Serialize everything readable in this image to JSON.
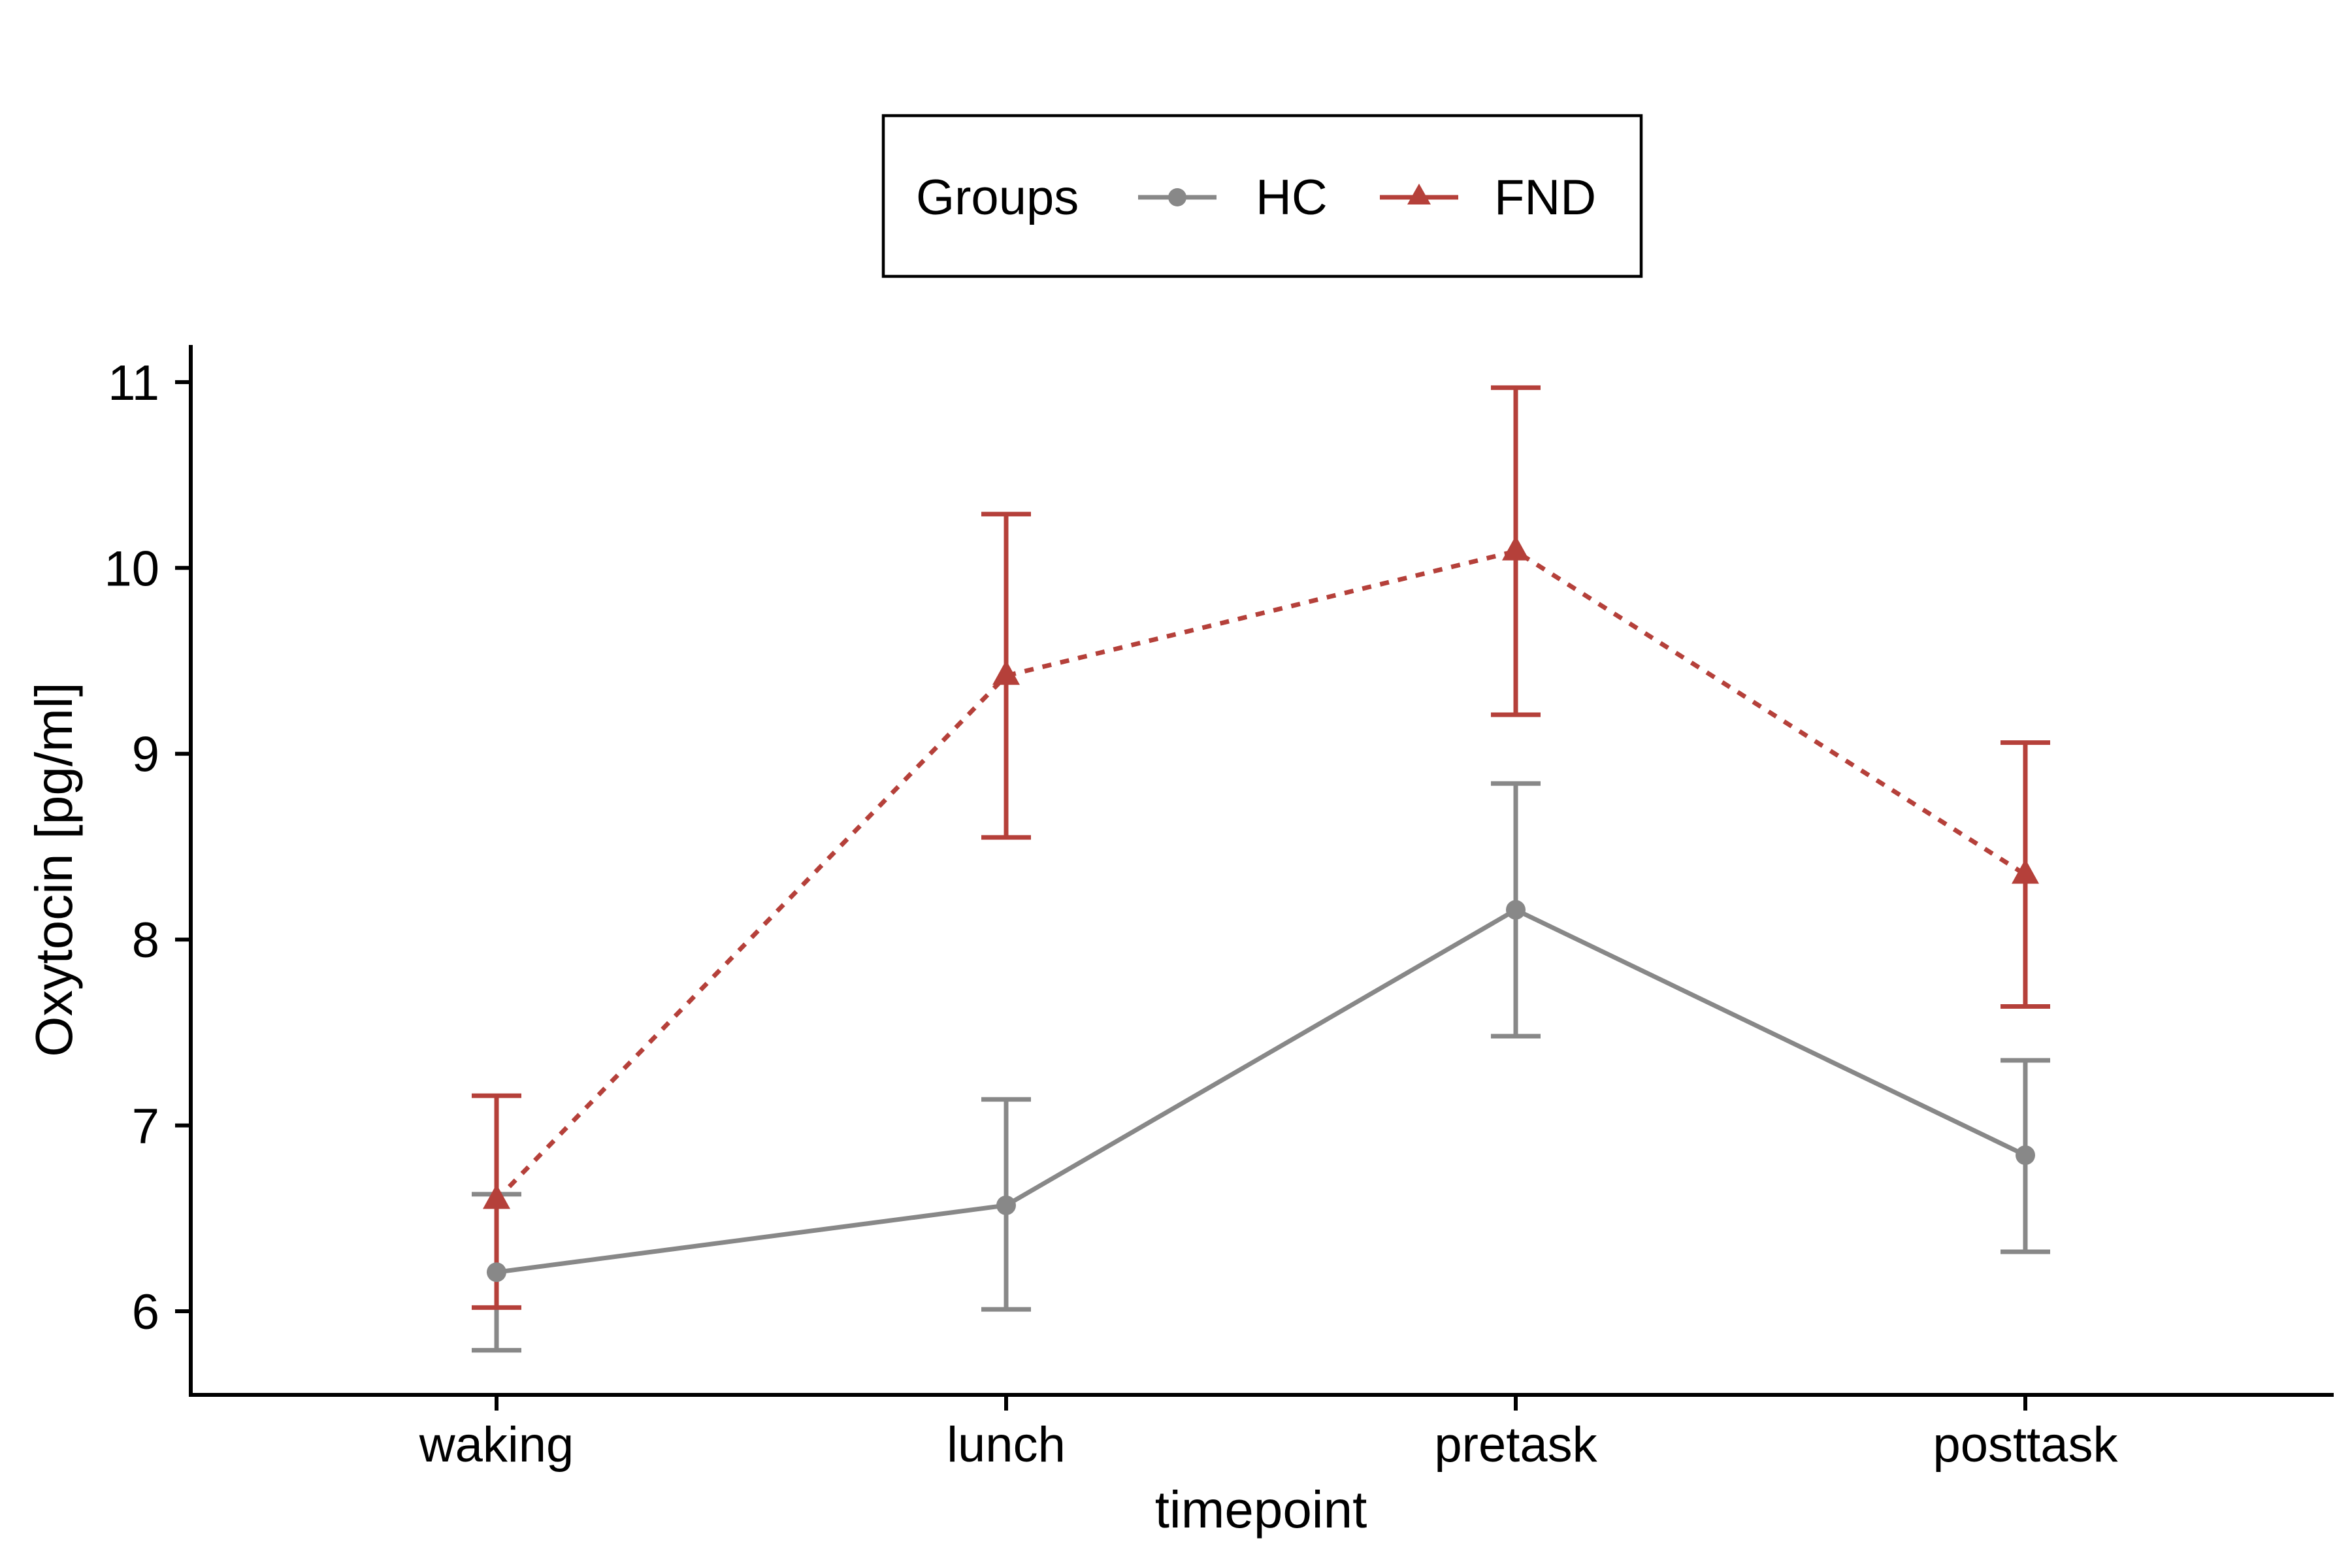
{
  "chart_data": {
    "type": "line",
    "xlabel": "timepoint",
    "ylabel": "Oxytocin [pg/ml]",
    "categories": [
      "waking",
      "lunch",
      "pretask",
      "posttask"
    ],
    "yticks": [
      6,
      7,
      8,
      9,
      10,
      11
    ],
    "ylim": [
      5.55,
      11.2
    ],
    "grid": false,
    "legend": {
      "title": "Groups",
      "position": "top",
      "entries": [
        "HC",
        "FND"
      ]
    },
    "series": [
      {
        "name": "HC",
        "color": "#888888",
        "marker": "circle",
        "linestyle": "solid",
        "values": [
          6.21,
          6.57,
          8.16,
          6.84
        ],
        "lower": [
          5.79,
          6.01,
          7.48,
          6.32
        ],
        "upper": [
          6.63,
          7.14,
          8.84,
          7.35
        ]
      },
      {
        "name": "FND",
        "color": "#b5403a",
        "marker": "triangle",
        "linestyle": "dotted",
        "values": [
          6.6,
          9.42,
          10.09,
          8.35
        ],
        "lower": [
          6.02,
          8.55,
          9.21,
          7.64
        ],
        "upper": [
          7.16,
          10.29,
          10.97,
          9.06
        ]
      }
    ]
  }
}
